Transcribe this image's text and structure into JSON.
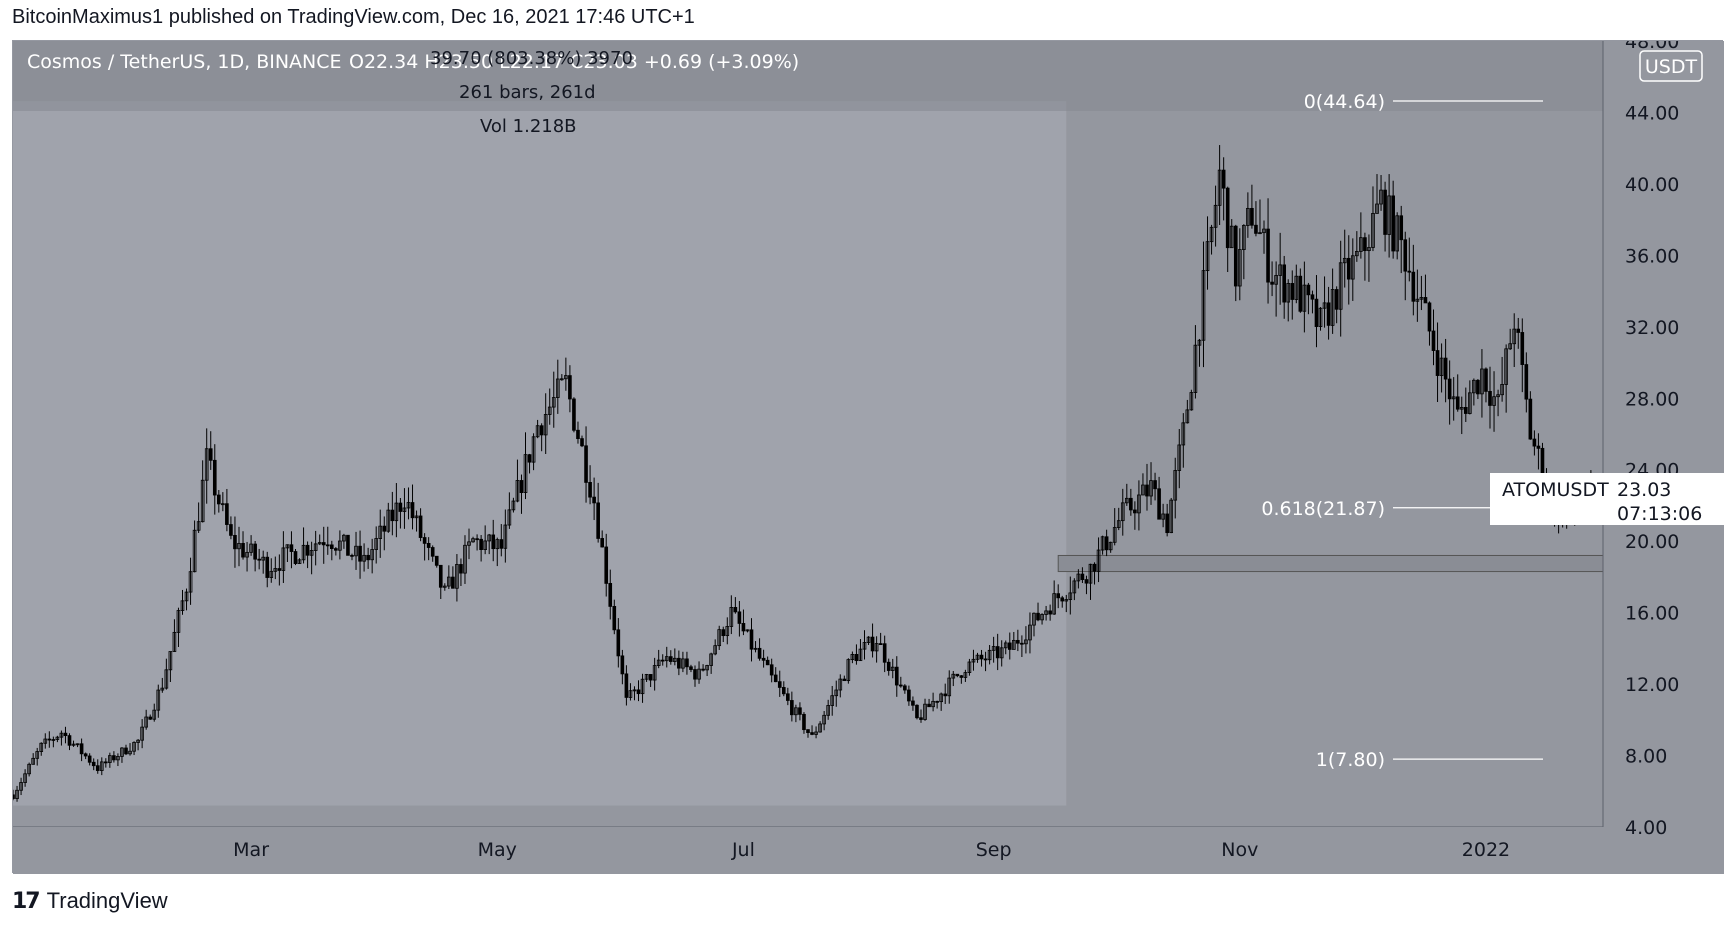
{
  "header": {
    "text": "BitcoinMaximus1 published on TradingView.com, Dec 16, 2021 17:46 UTC+1"
  },
  "legend": {
    "symbol": "Cosmos / TetherUS, 1D, BINANCE",
    "ohlc": "O22.34  H23.50  L22.17  C23.03  +0.69 (+3.09%)"
  },
  "measure": {
    "change": "39.70 (803.38%) 3970",
    "bars": "261 bars, 261d",
    "volume": "Vol 1.218B"
  },
  "currency_button": "USDT",
  "price_tag": {
    "symbol": "ATOMUSDT",
    "price": "23.03",
    "countdown": "07:13:06"
  },
  "footer": {
    "brand": "TradingView",
    "logo": "tradingview-logo"
  },
  "colors": {
    "bg": "#a0a3ac",
    "bg_dark": "#94979f",
    "candle": "#000000",
    "fib": "#ffffff"
  },
  "chart_data": {
    "type": "candlestick",
    "title": "Cosmos / TetherUS, 1D, BINANCE",
    "y_axis_side": "right",
    "ylim": [
      4,
      48
    ],
    "y_ticks": [
      "4.00",
      "8.00",
      "12.00",
      "16.00",
      "20.00",
      "24.00",
      "28.00",
      "32.00",
      "36.00",
      "40.00",
      "44.00",
      "48.00"
    ],
    "x_ticks": [
      "Mar",
      "May",
      "Jul",
      "Sep",
      "Nov",
      "2022"
    ],
    "x_range": [
      "2021-01-01",
      "2022-01-30"
    ],
    "x_tick_dates": [
      "2021-03-01",
      "2021-05-01",
      "2021-07-01",
      "2021-09-01",
      "2021-11-01",
      "2022-01-01"
    ],
    "current_price": 23.03,
    "fib_levels": [
      {
        "label": "0(44.64)",
        "value": 44.64
      },
      {
        "label": "0.618(21.87)",
        "value": 21.87
      },
      {
        "label": "1(7.80)",
        "value": 7.8
      }
    ],
    "support_zone": [
      18.3,
      19.2
    ],
    "measure_range": {
      "start": "2021-01-01",
      "end": "2021-09-19",
      "low": 5.2,
      "high": 44.64
    },
    "price_path": [
      [
        "2021-01-01",
        5.8
      ],
      [
        "2021-01-08",
        8.5
      ],
      [
        "2021-01-13",
        9.3
      ],
      [
        "2021-01-22",
        7.3
      ],
      [
        "2021-02-01",
        8.8
      ],
      [
        "2021-02-07",
        12.0
      ],
      [
        "2021-02-13",
        17.5
      ],
      [
        "2021-02-18",
        24.5
      ],
      [
        "2021-02-24",
        20.0
      ],
      [
        "2021-03-05",
        18.6
      ],
      [
        "2021-03-20",
        20.3
      ],
      [
        "2021-03-29",
        18.8
      ],
      [
        "2021-04-08",
        22.5
      ],
      [
        "2021-04-18",
        17.0
      ],
      [
        "2021-04-25",
        20.0
      ],
      [
        "2021-05-02",
        19.6
      ],
      [
        "2021-05-11",
        26.5
      ],
      [
        "2021-05-18",
        28.8
      ],
      [
        "2021-05-25",
        22.3
      ],
      [
        "2021-06-02",
        11.0
      ],
      [
        "2021-06-12",
        13.5
      ],
      [
        "2021-06-20",
        12.5
      ],
      [
        "2021-06-28",
        16.0
      ],
      [
        "2021-07-08",
        12.3
      ],
      [
        "2021-07-18",
        9.0
      ],
      [
        "2021-07-28",
        13.5
      ],
      [
        "2021-08-03",
        14.5
      ],
      [
        "2021-08-13",
        10.0
      ],
      [
        "2021-08-25",
        13.0
      ],
      [
        "2021-09-05",
        14.0
      ],
      [
        "2021-09-15",
        16.5
      ],
      [
        "2021-09-25",
        18.5
      ],
      [
        "2021-10-03",
        21.5
      ],
      [
        "2021-10-10",
        23.0
      ],
      [
        "2021-10-14",
        21.0
      ],
      [
        "2021-10-18",
        26.0
      ],
      [
        "2021-10-23",
        34.0
      ],
      [
        "2021-10-27",
        40.5
      ],
      [
        "2021-10-31",
        35.0
      ],
      [
        "2021-11-04",
        38.5
      ],
      [
        "2021-11-09",
        35.0
      ],
      [
        "2021-11-15",
        34.0
      ],
      [
        "2021-11-21",
        32.0
      ],
      [
        "2021-11-26",
        34.5
      ],
      [
        "2021-12-01",
        36.0
      ],
      [
        "2021-12-06",
        39.0
      ],
      [
        "2021-12-12",
        36.0
      ],
      [
        "2021-12-19",
        31.0
      ],
      [
        "2021-12-25",
        27.0
      ],
      [
        "2021-12-31",
        29.5
      ],
      [
        "2022-01-04",
        27.5
      ],
      [
        "2022-01-08",
        32.5
      ],
      [
        "2022-01-12",
        26.0
      ],
      [
        "2022-01-18",
        22.0
      ],
      [
        "2022-01-23",
        21.5
      ],
      [
        "2022-01-27",
        23.03
      ]
    ]
  }
}
